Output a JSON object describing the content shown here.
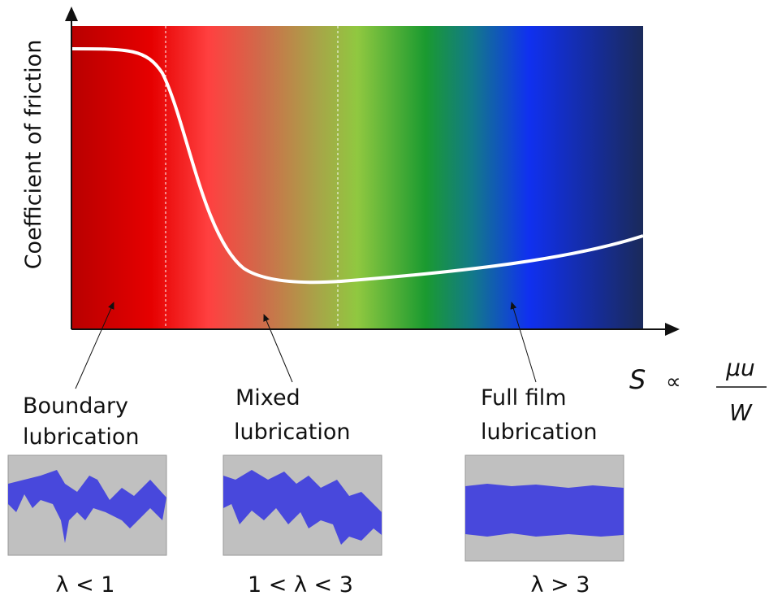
{
  "y_axis_label": "Coefficient of friction",
  "x_axis_formula": {
    "symbol": "S",
    "relation": "∝",
    "numerator": "μu",
    "denominator": "W"
  },
  "regions": [
    {
      "label_lines": [
        "Boundary",
        "lubrication"
      ],
      "condition": "λ < 1"
    },
    {
      "label_lines": [
        "Mixed",
        "lubrication"
      ],
      "condition": "1 < λ < 3"
    },
    {
      "label_lines": [
        "Full film",
        "lubrication"
      ],
      "condition": "λ > 3"
    }
  ]
}
